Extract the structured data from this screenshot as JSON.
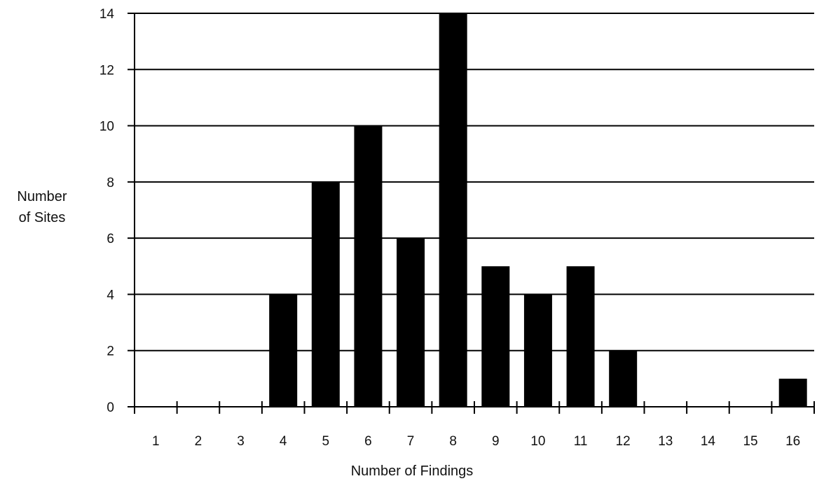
{
  "chart_data": {
    "type": "bar",
    "title": "",
    "ylabel_lines": [
      "Number",
      "of Sites"
    ],
    "xlabel": "Number of Findings",
    "categories": [
      "1",
      "2",
      "3",
      "4",
      "5",
      "6",
      "7",
      "8",
      "9",
      "10",
      "11",
      "12",
      "13",
      "14",
      "15",
      "16"
    ],
    "values": [
      0,
      0,
      0,
      4,
      8,
      10,
      6,
      14,
      5,
      4,
      5,
      2,
      0,
      0,
      0,
      1
    ],
    "ylim": [
      0,
      14
    ],
    "yticks": [
      0,
      2,
      4,
      6,
      8,
      10,
      12,
      14
    ],
    "grid": true,
    "bar_color": "#000000"
  }
}
